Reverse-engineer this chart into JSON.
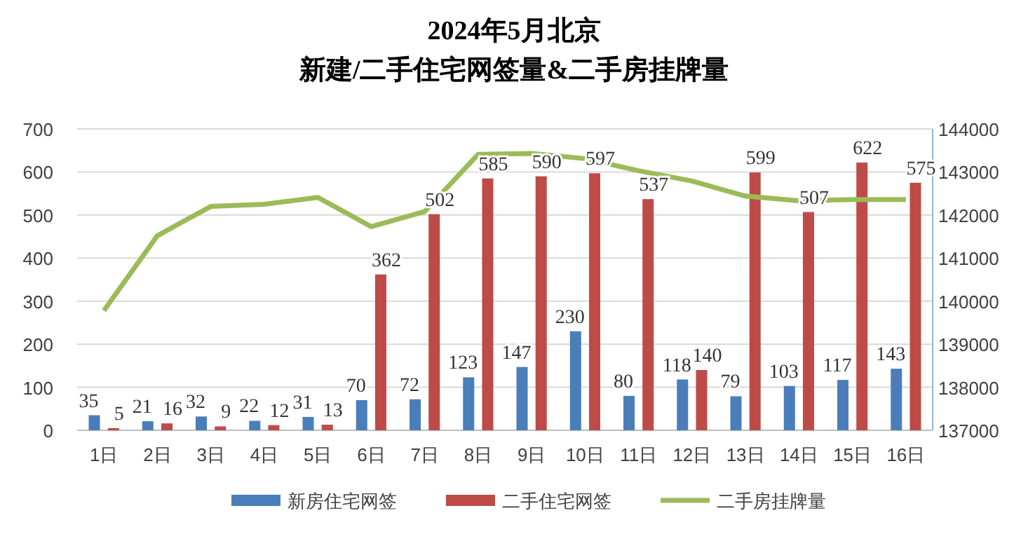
{
  "chart_data": {
    "type": "bar",
    "title": "2024年5月北京",
    "subtitle": "新建/二手住宅网签量&二手房挂牌量",
    "categories": [
      "1日",
      "2日",
      "3日",
      "4日",
      "5日",
      "6日",
      "7日",
      "8日",
      "9日",
      "10日",
      "11日",
      "12日",
      "13日",
      "14日",
      "15日",
      "16日"
    ],
    "series": [
      {
        "name": "新房住宅网签",
        "color": "#4a7ebb",
        "values": [
          35,
          21,
          32,
          22,
          31,
          70,
          72,
          123,
          147,
          230,
          80,
          118,
          79,
          103,
          117,
          143
        ],
        "value_labels": [
          "35",
          "21",
          "32",
          "22",
          "31",
          "70",
          "72",
          "123",
          "147",
          "230",
          "80",
          "118",
          "79",
          "103",
          "117",
          "143"
        ]
      },
      {
        "name": "二手住宅网签",
        "color": "#be4b48",
        "values": [
          5,
          16,
          9,
          12,
          13,
          362,
          502,
          585,
          590,
          597,
          537,
          140,
          599,
          507,
          622,
          575
        ],
        "value_labels": [
          "5",
          "16",
          "9",
          "12",
          "13",
          "362",
          "502",
          "585",
          "590",
          "597",
          "537",
          "140",
          "599",
          "507",
          "622",
          "575"
        ]
      },
      {
        "name": "二手房挂牌量",
        "color": "#9bbb59",
        "type": "line",
        "axis": "y2",
        "values": [
          139780,
          141520,
          142200,
          142250,
          142410,
          141730,
          142080,
          143410,
          143430,
          143310,
          143030,
          142790,
          142440,
          142330,
          142360,
          142360
        ]
      }
    ],
    "ylim": [
      0,
      700
    ],
    "yticks": [
      0,
      100,
      200,
      300,
      400,
      500,
      600,
      700
    ],
    "y2lim": [
      137000,
      144000
    ],
    "y2ticks": [
      137000,
      138000,
      139000,
      140000,
      141000,
      142000,
      143000,
      144000
    ],
    "grid": "y",
    "legend": "bottom",
    "marker": "none"
  }
}
